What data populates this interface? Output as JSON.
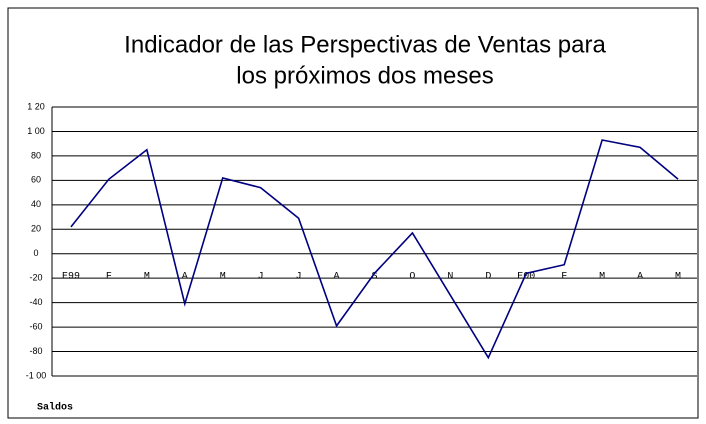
{
  "chart_data": {
    "type": "line",
    "title": [
      "Indicador de las Perspectivas de Ventas para",
      "los próximos dos meses"
    ],
    "y_label": "Saldos",
    "categories": [
      "E99",
      "F",
      "M",
      "A",
      "M",
      "J",
      "J",
      "A",
      "S",
      "O",
      "N",
      "D",
      "E00",
      "F",
      "M",
      "A",
      "M"
    ],
    "series": [
      {
        "name": "Saldos",
        "color": "#000080",
        "values": [
          22,
          61,
          85,
          -41,
          62,
          54,
          29,
          -59,
          -16,
          17,
          -34,
          -85,
          -16,
          -9,
          93,
          87,
          61
        ]
      }
    ],
    "ylim": [
      -100,
      120
    ],
    "yticks": [
      -100,
      {
        "value": -100,
        "label": "-1 00"
      },
      -80,
      -60,
      -40,
      -20,
      0,
      20,
      40,
      60,
      80,
      {
        "value": 100,
        "label": "1 00"
      },
      {
        "value": 120,
        "label": "1 20"
      }
    ],
    "grid": true
  }
}
